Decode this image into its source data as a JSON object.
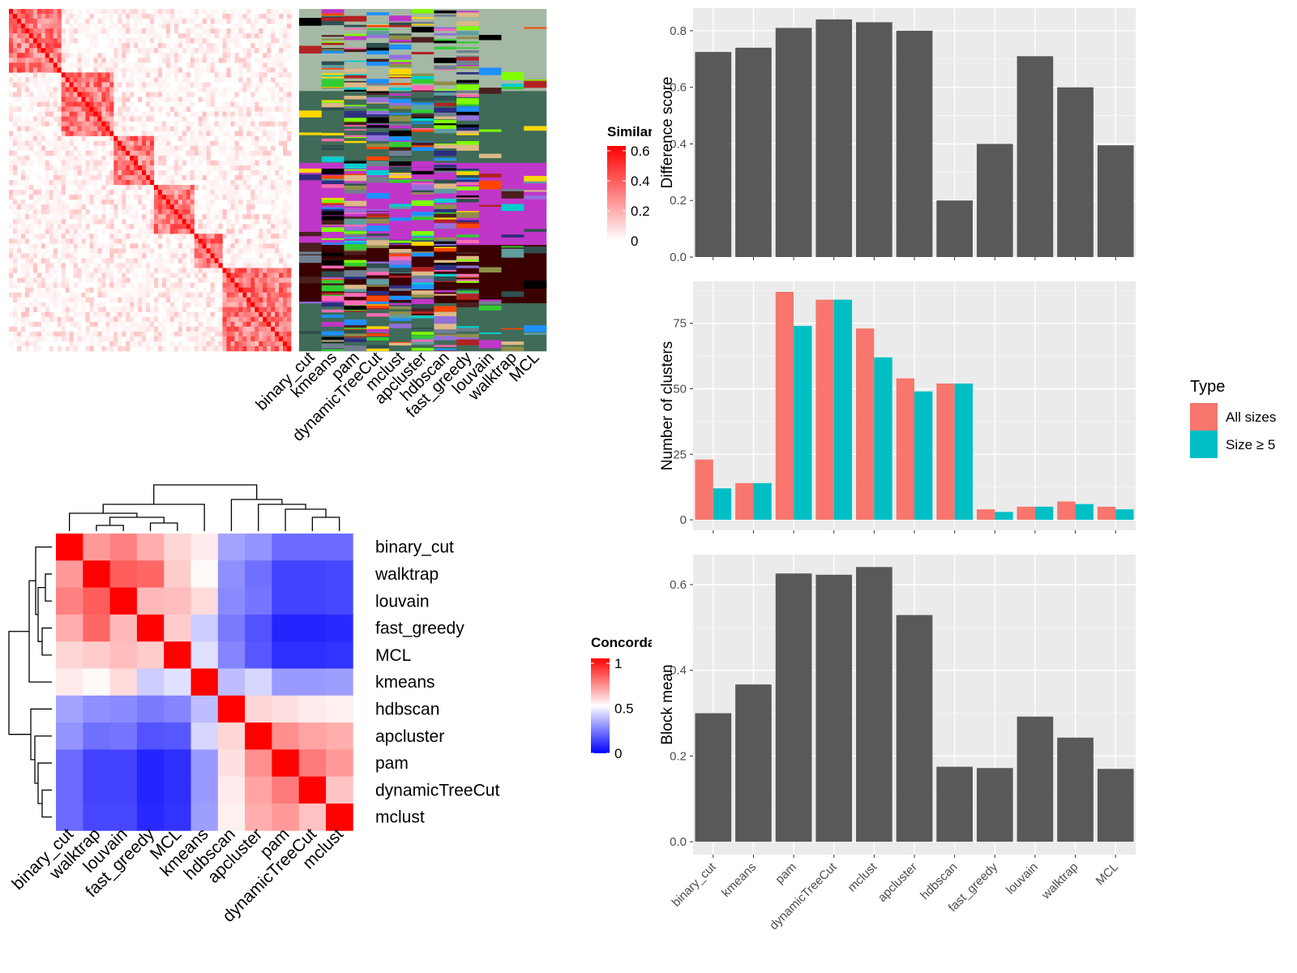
{
  "methods_order": [
    "binary_cut",
    "kmeans",
    "pam",
    "dynamicTreeCut",
    "mclust",
    "apcluster",
    "hdbscan",
    "fast_greedy",
    "louvain",
    "walktrap",
    "MCL"
  ],
  "colors": {
    "bar_gray": "#595959",
    "panel_bg": "#ebebeb",
    "all_sizes": "#f8766d",
    "size_ge5": "#00bfc4",
    "sim_high": "#ff0000",
    "conc_low": "#0000ff"
  },
  "chart_data": [
    {
      "id": "similarity_heatmap",
      "type": "heatmap",
      "legend_title": "Similarity",
      "legend_ticks": [
        "0.6",
        "0.4",
        "0.2",
        "0"
      ],
      "legend_range": [
        0,
        0.6
      ],
      "column_labels": [
        "binary_cut",
        "kmeans",
        "pam",
        "dynamicTreeCut",
        "mclust",
        "apcluster",
        "hdbscan",
        "fast_greedy",
        "louvain",
        "walktrap",
        "MCL"
      ],
      "diagonal_blocks": [
        0,
        0.19,
        0.37,
        0.52,
        0.66,
        0.76,
        1
      ]
    },
    {
      "id": "concordance_heatmap",
      "type": "heatmap",
      "legend_title": "Concordance",
      "legend_ticks": [
        "1",
        "0.5",
        "0"
      ],
      "legend_range": [
        0,
        1
      ],
      "row_labels": [
        "binary_cut",
        "walktrap",
        "louvain",
        "fast_greedy",
        "MCL",
        "kmeans",
        "hdbscan",
        "apcluster",
        "pam",
        "dynamicTreeCut",
        "mclust"
      ],
      "col_labels": [
        "binary_cut",
        "walktrap",
        "louvain",
        "fast_greedy",
        "MCL",
        "kmeans",
        "hdbscan",
        "apcluster",
        "pam",
        "dynamicTreeCut",
        "mclust"
      ],
      "matrix": [
        [
          1.0,
          0.7,
          0.75,
          0.66,
          0.58,
          0.54,
          0.32,
          0.29,
          0.21,
          0.21,
          0.21
        ],
        [
          0.7,
          1.0,
          0.82,
          0.8,
          0.6,
          0.51,
          0.28,
          0.22,
          0.13,
          0.13,
          0.14
        ],
        [
          0.75,
          0.82,
          1.0,
          0.64,
          0.63,
          0.57,
          0.27,
          0.23,
          0.13,
          0.13,
          0.14
        ],
        [
          0.66,
          0.8,
          0.64,
          1.0,
          0.6,
          0.4,
          0.24,
          0.16,
          0.07,
          0.07,
          0.08
        ],
        [
          0.58,
          0.6,
          0.63,
          0.6,
          1.0,
          0.44,
          0.26,
          0.17,
          0.09,
          0.09,
          0.1
        ],
        [
          0.54,
          0.51,
          0.57,
          0.4,
          0.44,
          1.0,
          0.37,
          0.42,
          0.3,
          0.3,
          0.31
        ],
        [
          0.32,
          0.28,
          0.27,
          0.24,
          0.26,
          0.37,
          1.0,
          0.58,
          0.56,
          0.54,
          0.53
        ],
        [
          0.29,
          0.22,
          0.23,
          0.16,
          0.17,
          0.42,
          0.58,
          1.0,
          0.72,
          0.68,
          0.66
        ],
        [
          0.21,
          0.13,
          0.13,
          0.07,
          0.09,
          0.3,
          0.56,
          0.72,
          1.0,
          0.76,
          0.7
        ],
        [
          0.21,
          0.13,
          0.13,
          0.07,
          0.09,
          0.3,
          0.54,
          0.68,
          0.76,
          1.0,
          0.62
        ],
        [
          0.21,
          0.14,
          0.14,
          0.08,
          0.1,
          0.31,
          0.53,
          0.66,
          0.7,
          0.62,
          1.0
        ]
      ]
    },
    {
      "id": "difference_score",
      "type": "bar",
      "ylabel": "Difference score",
      "categories": [
        "binary_cut",
        "kmeans",
        "pam",
        "dynamicTreeCut",
        "mclust",
        "apcluster",
        "hdbscan",
        "fast_greedy",
        "louvain",
        "walktrap",
        "MCL"
      ],
      "values": [
        0.725,
        0.74,
        0.81,
        0.84,
        0.83,
        0.8,
        0.2,
        0.4,
        0.71,
        0.6,
        0.395
      ],
      "ylim": [
        0,
        0.88
      ],
      "yticks": [
        "0.0",
        "0.2",
        "0.4",
        "0.6",
        "0.8"
      ],
      "ytick_values": [
        0,
        0.2,
        0.4,
        0.6,
        0.8
      ]
    },
    {
      "id": "number_of_clusters",
      "type": "bar",
      "ylabel": "Number of clusters",
      "categories": [
        "binary_cut",
        "kmeans",
        "pam",
        "dynamicTreeCut",
        "mclust",
        "apcluster",
        "hdbscan",
        "fast_greedy",
        "louvain",
        "walktrap",
        "MCL"
      ],
      "series": [
        {
          "name": "All sizes",
          "values": [
            23,
            14,
            87,
            84,
            73,
            54,
            52,
            4,
            5,
            7,
            5
          ]
        },
        {
          "name": "Size ≥ 5",
          "values": [
            12,
            14,
            74,
            84,
            62,
            49,
            52,
            3,
            5,
            6,
            4
          ]
        }
      ],
      "ylim": [
        -4,
        91
      ],
      "yticks": [
        "0",
        "25",
        "50",
        "75"
      ],
      "ytick_values": [
        0,
        25,
        50,
        75
      ],
      "legend_title": "Type",
      "legend_position": "right"
    },
    {
      "id": "block_mean",
      "type": "bar",
      "ylabel": "Block mean",
      "categories": [
        "binary_cut",
        "kmeans",
        "pam",
        "dynamicTreeCut",
        "mclust",
        "apcluster",
        "hdbscan",
        "fast_greedy",
        "louvain",
        "walktrap",
        "MCL"
      ],
      "values": [
        0.3,
        0.367,
        0.626,
        0.623,
        0.641,
        0.529,
        0.175,
        0.172,
        0.292,
        0.243,
        0.17
      ],
      "ylim": [
        -0.03,
        0.67
      ],
      "yticks": [
        "0.0",
        "0.2",
        "0.4",
        "0.6"
      ],
      "ytick_values": [
        0,
        0.2,
        0.4,
        0.6
      ]
    }
  ]
}
